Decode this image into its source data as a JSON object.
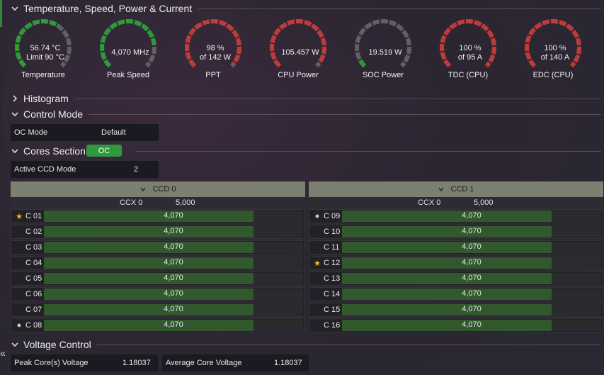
{
  "sections": {
    "temperature": "Temperature, Speed, Power & Current",
    "histogram": "Histogram",
    "control_mode": "Control Mode",
    "cores": "Cores Section",
    "voltage": "Voltage Control"
  },
  "gauges": [
    {
      "line1": "56.74 °C",
      "line2": "Limit 90 °C",
      "label": "Temperature",
      "fraction": 0.63,
      "color": "#2e9a3c"
    },
    {
      "line1": "4,070  MHz",
      "line2": "",
      "label": "Peak Speed",
      "fraction": 0.81,
      "color": "#2e9a3c"
    },
    {
      "line1": "98 %",
      "line2": "of 142 W",
      "label": "PPT",
      "fraction": 0.98,
      "color": "#c03a3a"
    },
    {
      "line1": "105.457 W",
      "line2": "",
      "label": "CPU Power",
      "fraction": 0.95,
      "color": "#c03a3a"
    },
    {
      "line1": "19.519 W",
      "line2": "",
      "label": "SOC Power",
      "fraction": 0.06,
      "color": "#2e9a3c"
    },
    {
      "line1": "100 %",
      "line2": "of 95 A",
      "label": "TDC (CPU)",
      "fraction": 1.0,
      "color": "#c03a3a"
    },
    {
      "line1": "100 %",
      "line2": "of 140 A",
      "label": "EDC (CPU)",
      "fraction": 1.0,
      "color": "#c03a3a"
    }
  ],
  "control": {
    "oc_mode_label": "OC Mode",
    "oc_mode_value": "Default"
  },
  "cores_section": {
    "badge": "OC",
    "active_ccd_label": "Active CCD Mode",
    "active_ccd_value": "2"
  },
  "ccds": [
    {
      "title": "CCD 0",
      "ccx_label": "CCX 0",
      "ccx_value": "5,000",
      "cores": [
        {
          "name": "C 01",
          "value": "4,070",
          "fraction": 0.81,
          "mark": "star"
        },
        {
          "name": "C 02",
          "value": "4,070",
          "fraction": 0.81,
          "mark": ""
        },
        {
          "name": "C 03",
          "value": "4,070",
          "fraction": 0.81,
          "mark": ""
        },
        {
          "name": "C 04",
          "value": "4,070",
          "fraction": 0.81,
          "mark": ""
        },
        {
          "name": "C 05",
          "value": "4,070",
          "fraction": 0.81,
          "mark": ""
        },
        {
          "name": "C 06",
          "value": "4,070",
          "fraction": 0.81,
          "mark": ""
        },
        {
          "name": "C 07",
          "value": "4,070",
          "fraction": 0.81,
          "mark": ""
        },
        {
          "name": "C 08",
          "value": "4,070",
          "fraction": 0.81,
          "mark": "dot"
        }
      ]
    },
    {
      "title": "CCD 1",
      "ccx_label": "CCX 0",
      "ccx_value": "5,000",
      "cores": [
        {
          "name": "C 09",
          "value": "4,070",
          "fraction": 0.81,
          "mark": "dot"
        },
        {
          "name": "C 10",
          "value": "4,070",
          "fraction": 0.81,
          "mark": ""
        },
        {
          "name": "C 11",
          "value": "4,070",
          "fraction": 0.81,
          "mark": ""
        },
        {
          "name": "C 12",
          "value": "4,070",
          "fraction": 0.81,
          "mark": "star"
        },
        {
          "name": "C 13",
          "value": "4,070",
          "fraction": 0.81,
          "mark": ""
        },
        {
          "name": "C 14",
          "value": "4,070",
          "fraction": 0.81,
          "mark": ""
        },
        {
          "name": "C 15",
          "value": "4,070",
          "fraction": 0.81,
          "mark": ""
        },
        {
          "name": "C 16",
          "value": "4,070",
          "fraction": 0.81,
          "mark": ""
        }
      ]
    }
  ],
  "voltage": {
    "peak_label": "Peak Core(s) Voltage",
    "peak_value": "1.18037",
    "avg_label": "Average Core Voltage",
    "avg_value": "1.18037"
  },
  "icons": {
    "collapse": "double-chevron-left-icon"
  }
}
